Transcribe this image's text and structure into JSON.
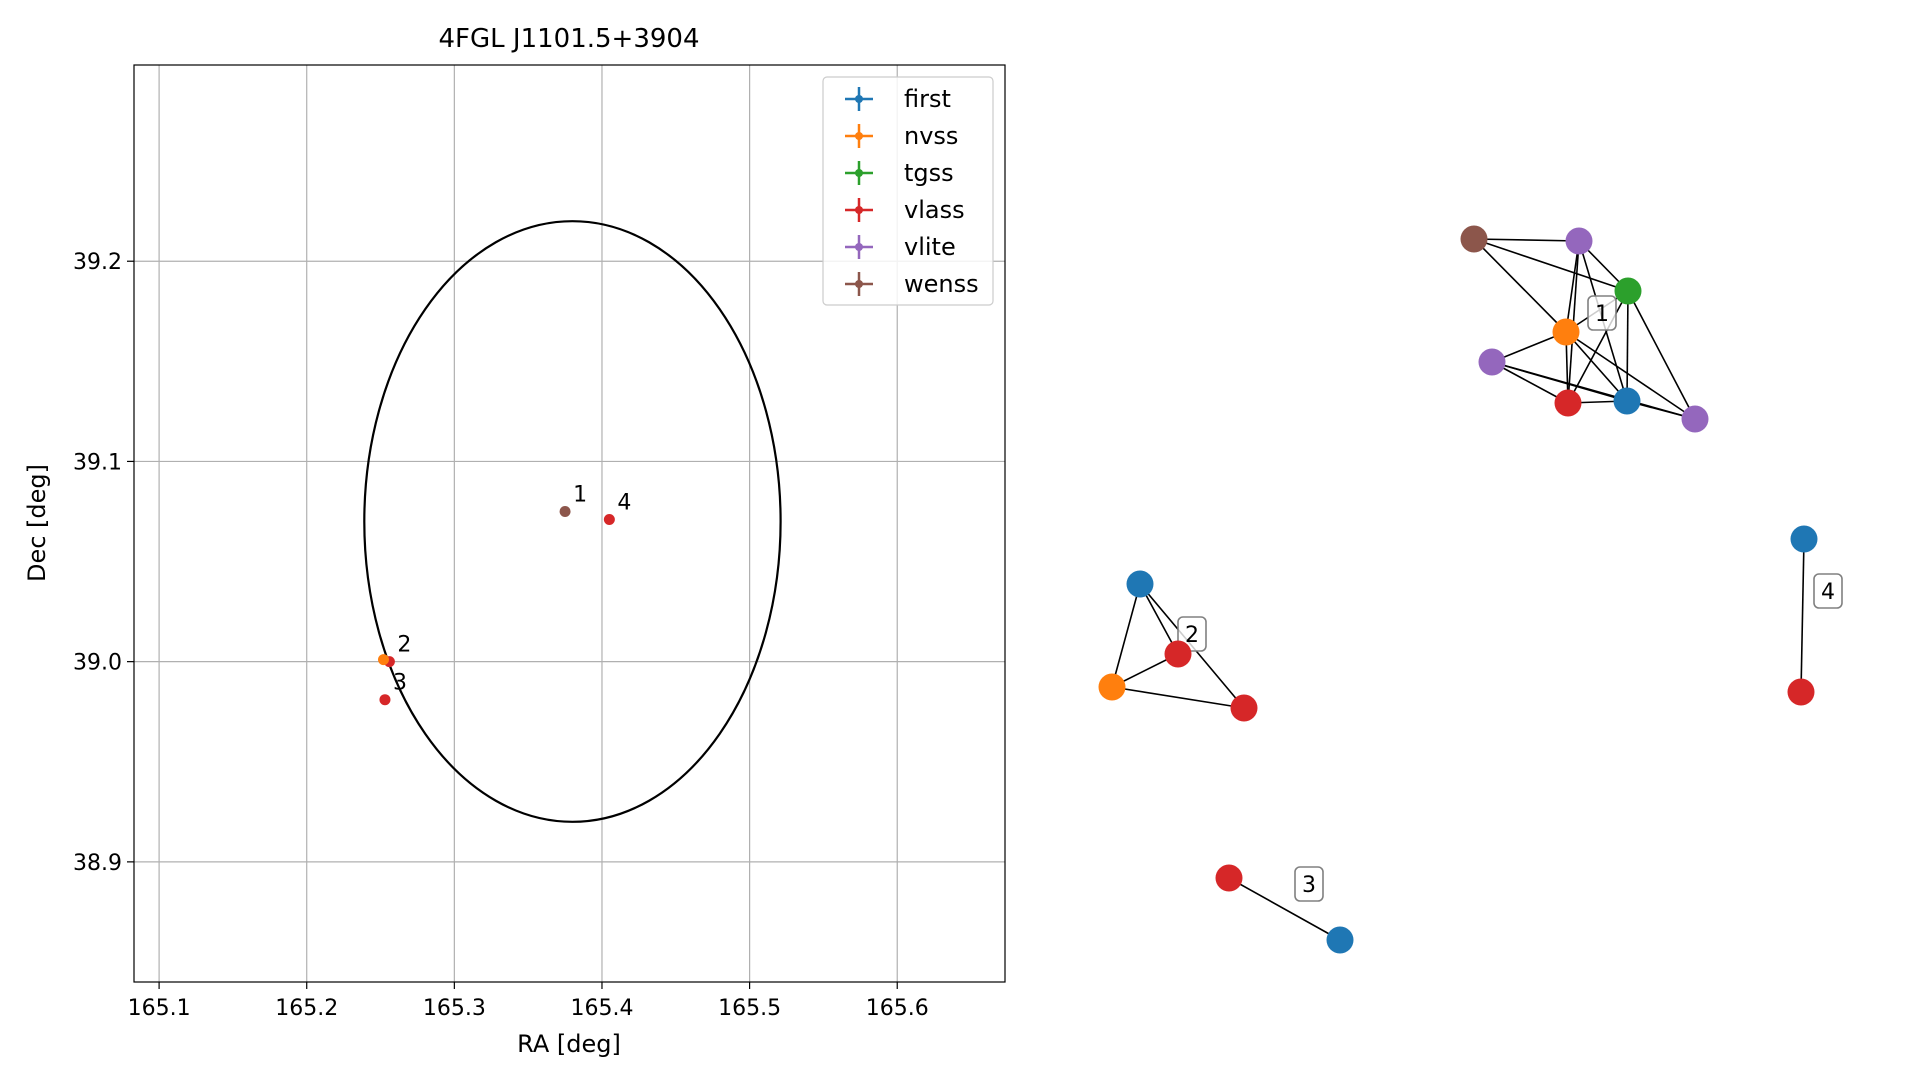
{
  "chart_data": [
    {
      "type": "scatter",
      "title": "4FGL J1101.5+3904",
      "xlabel": "RA [deg]",
      "ylabel": "Dec [deg]",
      "xlim": [
        165.083,
        165.673
      ],
      "ylim": [
        38.84,
        39.298
      ],
      "xticks": [
        165.1,
        165.2,
        165.3,
        165.4,
        165.5,
        165.6
      ],
      "yticks": [
        38.9,
        39.0,
        39.1,
        39.2
      ],
      "xtick_labels": [
        "165.1",
        "165.2",
        "165.3",
        "165.4",
        "165.5",
        "165.6"
      ],
      "ytick_labels": [
        "38.9",
        "39.0",
        "39.1",
        "39.2"
      ],
      "grid": true,
      "legend_position": "top-right",
      "legend": [
        {
          "name": "first",
          "color": "#1f77b4"
        },
        {
          "name": "nvss",
          "color": "#ff7f0e"
        },
        {
          "name": "tgss",
          "color": "#2ca02c"
        },
        {
          "name": "vlass",
          "color": "#d62728"
        },
        {
          "name": "vlite",
          "color": "#9467bd"
        },
        {
          "name": "wenss",
          "color": "#8c564b"
        }
      ],
      "ellipse": {
        "center": [
          165.38,
          39.07
        ],
        "semi_axis_ra": 0.141,
        "semi_axis_dec": 0.15,
        "rotation_deg": 0,
        "color": "#000000"
      },
      "points": [
        {
          "label": "1",
          "ra": 165.375,
          "dec": 39.075,
          "color": "#8c564b"
        },
        {
          "label": "4",
          "ra": 165.405,
          "dec": 39.071,
          "color": "#d62728"
        },
        {
          "label": "2",
          "ra": 165.256,
          "dec": 39.0,
          "color": "#d62728"
        },
        {
          "label": "",
          "ra": 165.252,
          "dec": 39.001,
          "color": "#ff7f0e"
        },
        {
          "label": "3",
          "ra": 165.253,
          "dec": 38.981,
          "color": "#d62728"
        }
      ]
    },
    {
      "type": "network",
      "nodes": [
        {
          "id": "a",
          "color": "#8c564b"
        },
        {
          "id": "b",
          "color": "#9467bd"
        },
        {
          "id": "c",
          "color": "#2ca02c"
        },
        {
          "id": "d",
          "color": "#ff7f0e"
        },
        {
          "id": "e",
          "color": "#9467bd"
        },
        {
          "id": "f",
          "color": "#d62728"
        },
        {
          "id": "g",
          "color": "#1f77b4"
        },
        {
          "id": "h",
          "color": "#9467bd"
        },
        {
          "id": "i",
          "color": "#1f77b4"
        },
        {
          "id": "j",
          "color": "#d62728"
        },
        {
          "id": "k",
          "color": "#ff7f0e"
        },
        {
          "id": "l",
          "color": "#d62728"
        },
        {
          "id": "m",
          "color": "#d62728"
        },
        {
          "id": "n",
          "color": "#1f77b4"
        },
        {
          "id": "o",
          "color": "#1f77b4"
        },
        {
          "id": "p",
          "color": "#d62728"
        }
      ],
      "edges": [
        [
          "a",
          "b"
        ],
        [
          "a",
          "d"
        ],
        [
          "a",
          "c"
        ],
        [
          "b",
          "d"
        ],
        [
          "b",
          "c"
        ],
        [
          "b",
          "f"
        ],
        [
          "b",
          "g"
        ],
        [
          "c",
          "d"
        ],
        [
          "c",
          "f"
        ],
        [
          "c",
          "g"
        ],
        [
          "c",
          "h"
        ],
        [
          "d",
          "e"
        ],
        [
          "d",
          "f"
        ],
        [
          "d",
          "g"
        ],
        [
          "d",
          "h"
        ],
        [
          "e",
          "f"
        ],
        [
          "e",
          "g"
        ],
        [
          "e",
          "h"
        ],
        [
          "f",
          "g"
        ],
        [
          "g",
          "h"
        ],
        [
          "i",
          "k"
        ],
        [
          "i",
          "j"
        ],
        [
          "i",
          "l"
        ],
        [
          "k",
          "j"
        ],
        [
          "k",
          "l"
        ],
        [
          "m",
          "n"
        ],
        [
          "o",
          "p"
        ]
      ],
      "group_labels": [
        "1",
        "2",
        "3",
        "4"
      ]
    }
  ]
}
